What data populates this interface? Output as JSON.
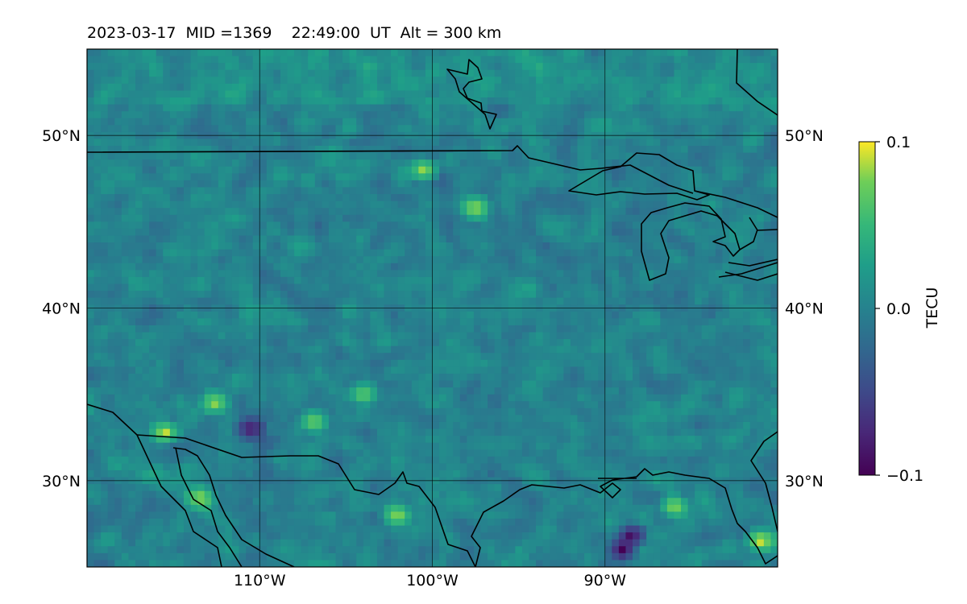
{
  "title": {
    "date": "2023-03-17",
    "mid": "MID =1369",
    "time": "22:49:00  UT",
    "altitude": "Alt = 300 km"
  },
  "map": {
    "type": "heatmap",
    "lon_range": [
      -120,
      -80
    ],
    "lat_range": [
      25,
      55
    ],
    "lon_ticks": [
      {
        "value": -110,
        "label": "110°W"
      },
      {
        "value": -100,
        "label": "100°W"
      },
      {
        "value": -90,
        "label": "90°W"
      }
    ],
    "lat_ticks": [
      {
        "value": 50,
        "label": "50°N"
      },
      {
        "value": 40,
        "label": "40°N"
      },
      {
        "value": 30,
        "label": "30°N"
      }
    ],
    "gridlines": true
  },
  "chart_data": {
    "type": "heatmap",
    "title": "2023-03-17  MID =1369    22:49:00  UT  Alt = 300 km",
    "colormap": "viridis",
    "value_range": [
      -0.1,
      0.1
    ],
    "colorbar_label": "TECU",
    "colorbar_ticks": [
      {
        "value": 0.1,
        "label": "0.1"
      },
      {
        "value": 0.0,
        "label": "0.0"
      },
      {
        "value": -0.1,
        "label": "−0.1"
      }
    ],
    "hotspots": [
      {
        "lon": -115.5,
        "lat": 32.8,
        "value": 0.1
      },
      {
        "lon": -112.6,
        "lat": 34.5,
        "value": 0.09
      },
      {
        "lon": -106.8,
        "lat": 33.4,
        "value": 0.08
      },
      {
        "lon": -100.5,
        "lat": 48.0,
        "value": 0.09
      },
      {
        "lon": -97.5,
        "lat": 45.8,
        "value": 0.09
      },
      {
        "lon": -104.0,
        "lat": 35.0,
        "value": 0.08
      },
      {
        "lon": -102.0,
        "lat": 28.0,
        "value": 0.09
      },
      {
        "lon": -113.5,
        "lat": 29.0,
        "value": 0.09
      },
      {
        "lon": -86.0,
        "lat": 28.5,
        "value": 0.09
      },
      {
        "lon": -81.0,
        "lat": 26.5,
        "value": 0.1
      },
      {
        "lon": -88.5,
        "lat": 26.8,
        "value": -0.1
      },
      {
        "lon": -110.5,
        "lat": 33.0,
        "value": -0.09
      },
      {
        "lon": -89.0,
        "lat": 26.0,
        "value": -0.1
      }
    ]
  },
  "colors": {
    "coastline": "#000000",
    "grid": "#000000",
    "low": "#440154",
    "mid": "#21918c",
    "high": "#fde725"
  }
}
